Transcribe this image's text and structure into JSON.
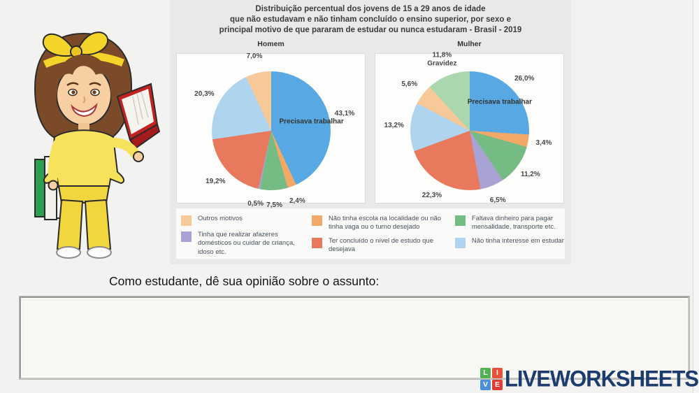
{
  "character": {
    "alt": "Cartoon girl with brown bob hair and yellow bow headband, wearing yellow shirt and pants, holding an open red book and a stack of books",
    "colors": {
      "hair": "#7b4a28",
      "skin": "#f7cfa2",
      "bow": "#f4d429",
      "shirt": "#f8e25c",
      "pants": "#f2d63e",
      "book": "#c42121"
    }
  },
  "chart_image": {
    "title_lines": [
      "Distribuição percentual dos jovens de 15 a 29 anos de idade",
      "que não estudavam e não tinham concluído o ensino superior, por sexo e",
      "principal motivo de que pararam de estudar ou nunca estudaram - Brasil - 2019"
    ]
  },
  "chart_data": {
    "type": "pie",
    "title": "Distribuição percentual dos jovens de 15 a 29 anos de idade que não estudavam e não tinham concluído o ensino superior, por sexo e principal motivo de que pararam de estudar ou nunca estudaram - Brasil - 2019",
    "legend_position": "bottom",
    "charts": [
      {
        "title": "Homem",
        "slices": [
          {
            "category": "Precisava trabalhar",
            "value": 43.1,
            "display": "43,1%",
            "color": "#58a9e3",
            "name_on_slice": true
          },
          {
            "category": "Não tinha escola na localidade ou não tinha vaga ou o turno desejado",
            "value": 2.4,
            "display": "2,4%",
            "color": "#f3a868"
          },
          {
            "category": "Faltava dinheiro para pagar mensalidade, transporte etc.",
            "value": 7.5,
            "display": "7,5%",
            "color": "#74bb84"
          },
          {
            "category": "Tinha que realizar afazeres domésticos ou cuidar de criança, idoso etc.",
            "value": 0.5,
            "display": "0,5%",
            "color": "#a9a2d4"
          },
          {
            "category": "Ter concluído o nível de estudo que desejava",
            "value": 19.2,
            "display": "19,2%",
            "color": "#e8795c"
          },
          {
            "category": "Não tinha interesse em estudar",
            "value": 20.3,
            "display": "20,3%",
            "color": "#aed4ef"
          },
          {
            "category": "Outros motivos",
            "value": 7.0,
            "display": "7,0%",
            "color": "#f7c998"
          }
        ]
      },
      {
        "title": "Mulher",
        "slices": [
          {
            "category": "Precisava trabalhar",
            "value": 26.0,
            "display": "26,0%",
            "color": "#58a9e3",
            "name_on_slice": true
          },
          {
            "category": "Não tinha escola na localidade ou não tinha vaga ou o turno desejado",
            "value": 3.4,
            "display": "3,4%",
            "color": "#f3a868"
          },
          {
            "category": "Faltava dinheiro para pagar mensalidade, transporte etc.",
            "value": 11.2,
            "display": "11,2%",
            "color": "#74bb84"
          },
          {
            "category": "Tinha que realizar afazeres domésticos ou cuidar de criança, idoso etc.",
            "value": 6.5,
            "display": "6,5%",
            "color": "#a9a2d4"
          },
          {
            "category": "Ter concluído o nível de estudo que desejava",
            "value": 22.3,
            "display": "22,3%",
            "color": "#e8795c"
          },
          {
            "category": "Não tinha interesse em estudar",
            "value": 13.2,
            "display": "13,2%",
            "color": "#aed4ef"
          },
          {
            "category": "Outros motivos",
            "value": 5.6,
            "display": "5,6%",
            "color": "#f7c998"
          },
          {
            "category": "Gravidez",
            "value": 11.8,
            "display": "11,8%",
            "color": "#abd7af",
            "sublabel": "Gravidez"
          }
        ]
      }
    ],
    "legend": [
      {
        "label": "Outros motivos",
        "color": "#f7c998",
        "column": 0
      },
      {
        "label": "Tinha que realizar afazeres domésticos ou cuidar de criança, idoso etc.",
        "color": "#a9a2d4",
        "column": 0
      },
      {
        "label": "Não tinha escola na localidade ou não tinha vaga ou o turno desejado",
        "color": "#f3a868",
        "column": 1
      },
      {
        "label": "Ter concluído o nível de estudo que desejava",
        "color": "#e8795c",
        "column": 1
      },
      {
        "label": "Faltava dinheiro para pagar mensalidade, transporte etc.",
        "color": "#74bb84",
        "column": 2
      },
      {
        "label": "Não tinha interesse em estudar",
        "color": "#aed4ef",
        "column": 2
      }
    ]
  },
  "question": {
    "text": "Como estudante, dê sua opinião sobre o assunto:"
  },
  "answer_box": {
    "value": ""
  },
  "logo": {
    "text": "LIVEWORKSHEETS",
    "text_color": "#1d3c6e",
    "tiles": [
      {
        "letter": "L",
        "color": "#52b153"
      },
      {
        "letter": "I",
        "color": "#e8503a"
      },
      {
        "letter": "V",
        "color": "#4a90d9"
      },
      {
        "letter": "E",
        "color": "#e03c31"
      }
    ]
  }
}
